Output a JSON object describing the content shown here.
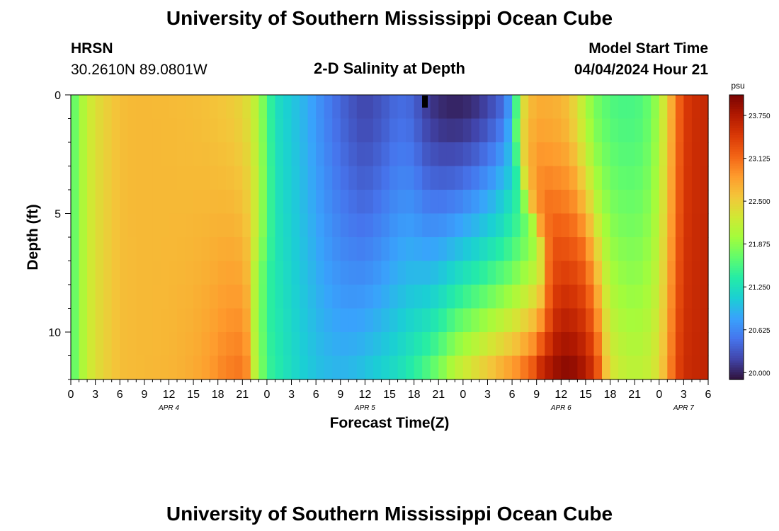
{
  "header": {
    "title": "University of Southern Mississippi Ocean Cube",
    "station_id": "HRSN",
    "station_coords": "30.2610N  89.0801W",
    "plot_title": "2-D Salinity at Depth",
    "model_start_label": "Model Start Time",
    "model_start_value": "04/04/2024 Hour 21"
  },
  "footer": {
    "title": "University of Southern Mississippi Ocean Cube"
  },
  "chart_data": {
    "type": "heatmap",
    "title": "2-D Salinity at Depth",
    "xlabel": "Forecast Time(Z)",
    "ylabel": "Depth (ft)",
    "x_range_hours": [
      0,
      78
    ],
    "x_start": "APR 4 00Z",
    "x_tick_labels": [
      "0",
      "3",
      "6",
      "9",
      "12",
      "15",
      "18",
      "21",
      "0",
      "3",
      "6",
      "9",
      "12",
      "15",
      "18",
      "21",
      "0",
      "3",
      "6",
      "9",
      "12",
      "15",
      "18",
      "21",
      "0",
      "3",
      "6"
    ],
    "date_labels": [
      {
        "text": "APR 4",
        "hour": 12
      },
      {
        "text": "APR 5",
        "hour": 36
      },
      {
        "text": "APR 6",
        "hour": 60
      },
      {
        "text": "APR 7",
        "hour": 75
      }
    ],
    "y_range_ft": [
      0,
      12
    ],
    "y_tick_labels": [
      "0",
      "5",
      "10"
    ],
    "depth_levels_ft": [
      0.5,
      1.5,
      2.5,
      3.5,
      4.5,
      5.5,
      6.5,
      7.5,
      8.5,
      9.5,
      10.5,
      11.5
    ],
    "colorbar": {
      "unit": "psu",
      "min": 19.9,
      "max": 24.05,
      "tick_labels": [
        "20.000",
        "20.625",
        "21.250",
        "21.875",
        "22.500",
        "23.125",
        "23.750"
      ],
      "colors": [
        "#30123b",
        "#4145ab",
        "#4675ed",
        "#39a2fc",
        "#1bcfd4",
        "#24eca6",
        "#61fc6c",
        "#a4fc3b",
        "#d1e834",
        "#f3c63a",
        "#fe9b2d",
        "#f36315",
        "#d93806",
        "#b11901",
        "#7a0402"
      ]
    },
    "surface_profile": [
      [
        0,
        21.55
      ],
      [
        1,
        21.9
      ],
      [
        2,
        22.2
      ],
      [
        3,
        22.35
      ],
      [
        4,
        22.45
      ],
      [
        5,
        22.55
      ],
      [
        6,
        22.62
      ],
      [
        8,
        22.66
      ],
      [
        12,
        22.65
      ],
      [
        16,
        22.62
      ],
      [
        18,
        22.58
      ],
      [
        20,
        22.52
      ],
      [
        21,
        22.45
      ],
      [
        22,
        22.3
      ],
      [
        23,
        22.0
      ],
      [
        24,
        21.6
      ],
      [
        25,
        21.25
      ],
      [
        27,
        21.05
      ],
      [
        29,
        20.85
      ],
      [
        31,
        20.6
      ],
      [
        33,
        20.4
      ],
      [
        35,
        20.25
      ],
      [
        36,
        20.2
      ],
      [
        38,
        20.3
      ],
      [
        40,
        20.45
      ],
      [
        42,
        20.4
      ],
      [
        43,
        20.2
      ],
      [
        45,
        20.05
      ],
      [
        47,
        20.0
      ],
      [
        49,
        20.05
      ],
      [
        51,
        20.2
      ],
      [
        53,
        20.45
      ],
      [
        54,
        20.9
      ],
      [
        55,
        22.2
      ],
      [
        56,
        22.6
      ],
      [
        57,
        22.75
      ],
      [
        58,
        22.75
      ],
      [
        60,
        22.7
      ],
      [
        61,
        22.6
      ],
      [
        62,
        22.35
      ],
      [
        63,
        22.05
      ],
      [
        64,
        21.8
      ],
      [
        66,
        21.6
      ],
      [
        68,
        21.55
      ],
      [
        70,
        21.6
      ],
      [
        71,
        21.75
      ],
      [
        72,
        22.0
      ],
      [
        73,
        22.5
      ],
      [
        74,
        23.0
      ],
      [
        75,
        23.4
      ],
      [
        76,
        23.55
      ],
      [
        78,
        23.6
      ]
    ],
    "bottom_profile": [
      [
        0,
        21.55
      ],
      [
        1,
        21.9
      ],
      [
        2,
        22.2
      ],
      [
        3,
        22.35
      ],
      [
        4,
        22.45
      ],
      [
        5,
        22.55
      ],
      [
        6,
        22.62
      ],
      [
        8,
        22.65
      ],
      [
        12,
        22.68
      ],
      [
        15,
        22.75
      ],
      [
        17,
        22.85
      ],
      [
        19,
        23.0
      ],
      [
        21,
        23.05
      ],
      [
        22,
        22.95
      ],
      [
        23,
        22.3
      ],
      [
        24,
        21.8
      ],
      [
        25,
        21.4
      ],
      [
        27,
        21.2
      ],
      [
        29,
        21.05
      ],
      [
        31,
        20.95
      ],
      [
        33,
        20.9
      ],
      [
        35,
        20.95
      ],
      [
        37,
        21.05
      ],
      [
        39,
        21.15
      ],
      [
        41,
        21.3
      ],
      [
        43,
        21.5
      ],
      [
        45,
        21.75
      ],
      [
        47,
        22.1
      ],
      [
        48,
        22.3
      ],
      [
        49,
        22.5
      ],
      [
        50,
        22.7
      ],
      [
        51,
        22.9
      ],
      [
        52,
        23.2
      ],
      [
        53,
        23.55
      ],
      [
        55,
        23.8
      ],
      [
        57,
        23.95
      ],
      [
        59,
        23.9
      ],
      [
        61,
        23.75
      ],
      [
        63,
        23.4
      ],
      [
        64,
        22.9
      ],
      [
        65,
        22.5
      ],
      [
        67,
        22.2
      ],
      [
        69,
        22.1
      ],
      [
        71,
        22.2
      ],
      [
        72,
        22.4
      ],
      [
        73,
        22.8
      ],
      [
        74,
        23.3
      ],
      [
        75,
        23.55
      ],
      [
        76,
        23.6
      ],
      [
        78,
        23.65
      ]
    ],
    "front_boundary_hours": [
      55,
      55,
      55.3,
      55.8,
      56.5,
      57.5,
      58.4,
      59,
      59.3,
      59.5,
      59.6,
      59.7
    ],
    "deep_front_edge_hours": [
      22.8,
      22.8,
      22.8,
      22.8,
      22.7,
      22.6,
      22.4,
      22.1,
      22.0,
      21.9,
      21.9,
      21.9
    ],
    "notes": "Heatmap of salinity (psu) vs forecast hour and depth, reconstructed as surface/bottom profiles with a tilted frontal boundary."
  }
}
